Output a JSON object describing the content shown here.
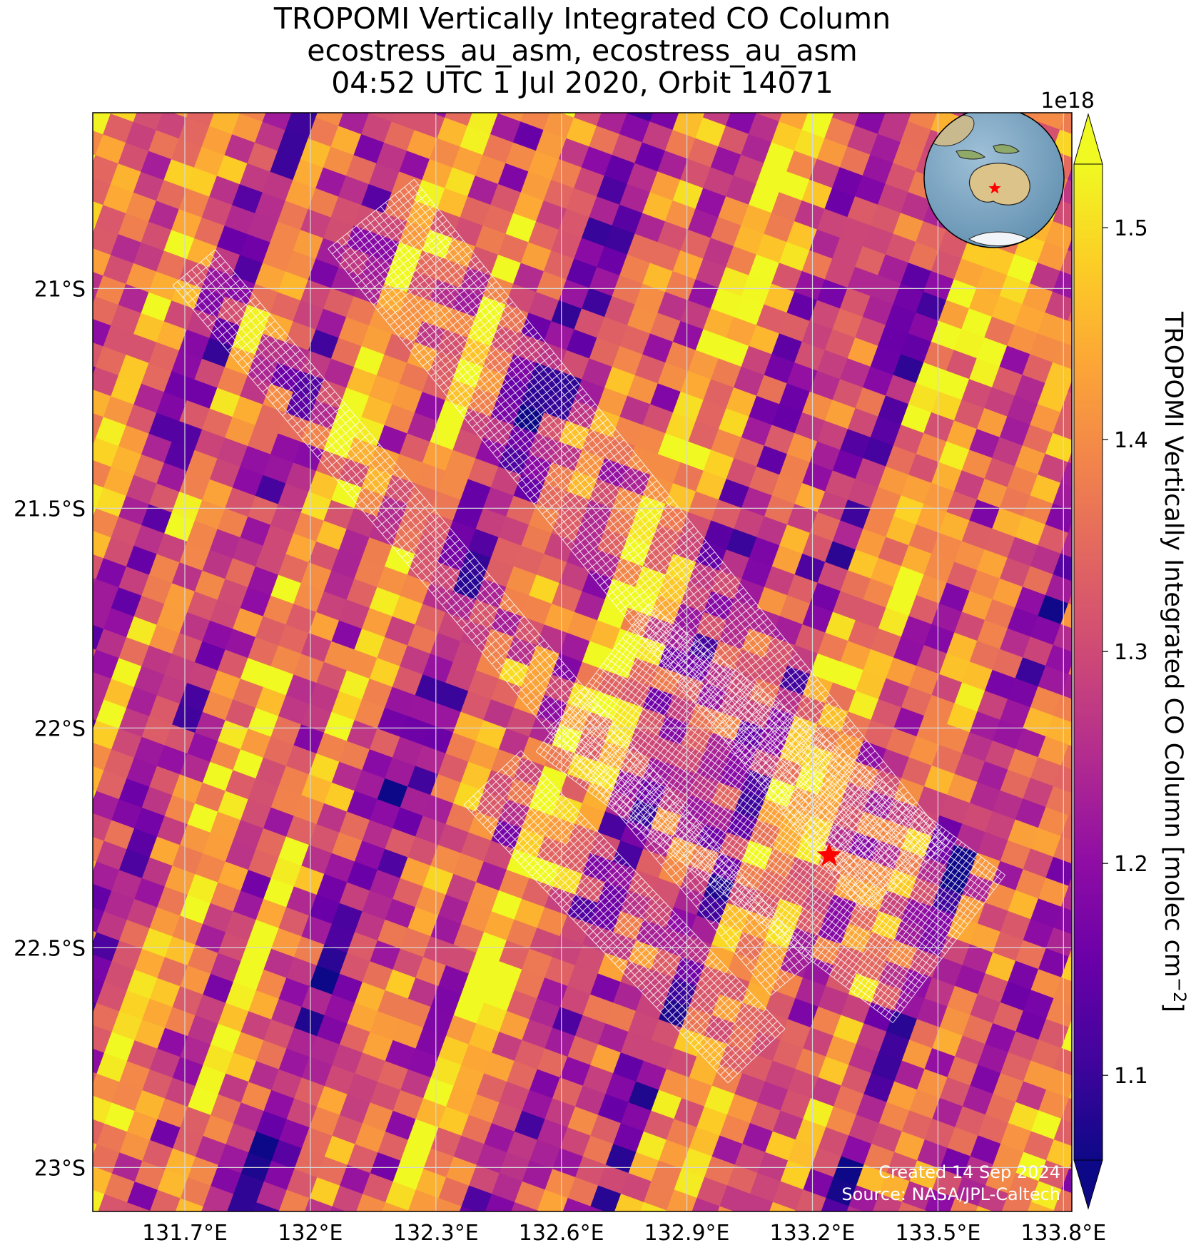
{
  "chart_data": {
    "type": "heatmap",
    "title_lines": [
      "TROPOMI Vertically Integrated CO Column",
      "ecostress_au_asm, ecostress_au_asm",
      "04:52 UTC 1 Jul 2020, Orbit 14071"
    ],
    "x_ticks": [
      "131.7°E",
      "132°E",
      "132.3°E",
      "132.6°E",
      "132.9°E",
      "133.2°E",
      "133.5°E",
      "133.8°E"
    ],
    "x_tick_values": [
      131.7,
      132.0,
      132.3,
      132.6,
      132.9,
      133.2,
      133.5,
      133.8
    ],
    "y_ticks": [
      "21°S",
      "21.5°S",
      "22°S",
      "22.5°S",
      "23°S"
    ],
    "y_tick_values": [
      -21.0,
      -21.5,
      -22.0,
      -22.5,
      -23.0
    ],
    "xlim": [
      131.48,
      133.82
    ],
    "ylim": [
      -23.1,
      -20.6
    ],
    "grid": true,
    "colorbar": {
      "label": "TROPOMI Vertically Integrated CO Column [molec cm",
      "label_sup": "−2",
      "label_end": "]",
      "offset_text": "1e18",
      "ticks": [
        "1.1",
        "1.2",
        "1.3",
        "1.4",
        "1.5"
      ],
      "tick_values": [
        1.1,
        1.2,
        1.3,
        1.4,
        1.5
      ],
      "range": [
        1.06,
        1.53
      ],
      "colormap": "plasma",
      "extend": "both"
    },
    "target_marker": {
      "lon": 133.24,
      "lat": -22.29,
      "symbol": "star",
      "color": "#ff0000"
    },
    "inset_globe": {
      "center_lon": 133.2,
      "center_lat": -22.3,
      "marker": "star"
    },
    "credit_lines": [
      "Created 14 Sep 2024",
      "Source: NASA/JPL-Caltech"
    ]
  }
}
